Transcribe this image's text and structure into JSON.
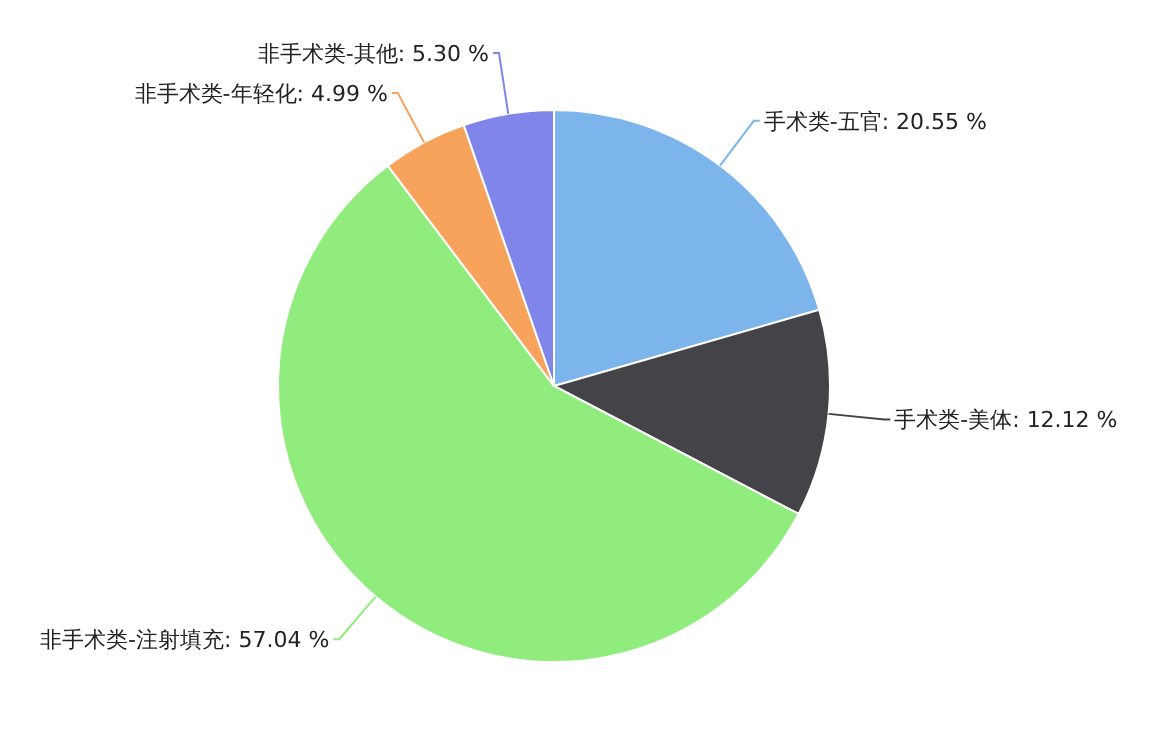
{
  "chart_data": {
    "type": "pie",
    "categories": [
      "手术类-五官",
      "手术类-美体",
      "非手术类-注射填充",
      "非手术类-年轻化",
      "非手术类-其他"
    ],
    "values": [
      20.55,
      12.12,
      57.04,
      4.99,
      5.3
    ],
    "value_labels": [
      "20.55 %",
      "12.12 %",
      "57.04 %",
      "4.99 %",
      "5.30 %"
    ],
    "colors": [
      "#7cb5ec",
      "#434348",
      "#90ed7d",
      "#f7a35c",
      "#8085e9"
    ]
  }
}
